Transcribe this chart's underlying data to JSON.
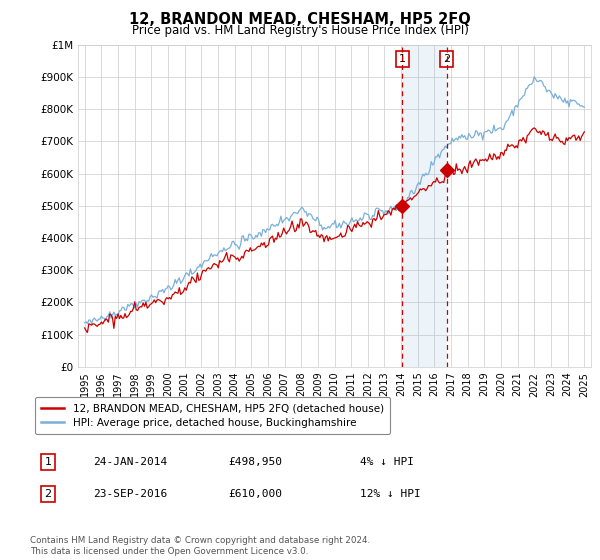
{
  "title": "12, BRANDON MEAD, CHESHAM, HP5 2FQ",
  "subtitle": "Price paid vs. HM Land Registry's House Price Index (HPI)",
  "ylim": [
    0,
    1000000
  ],
  "yticks": [
    0,
    100000,
    200000,
    300000,
    400000,
    500000,
    600000,
    700000,
    800000,
    900000,
    1000000
  ],
  "ytick_labels": [
    "£0",
    "£100K",
    "£200K",
    "£300K",
    "£400K",
    "£500K",
    "£600K",
    "£700K",
    "£800K",
    "£900K",
    "£1M"
  ],
  "hpi_color": "#7ab0d8",
  "price_color": "#cc0000",
  "sale1_price": 498950,
  "sale1_x": 2014.07,
  "sale1_date": "24-JAN-2014",
  "sale1_note": "4% ↓ HPI",
  "sale2_price": 610000,
  "sale2_x": 2016.73,
  "sale2_date": "23-SEP-2016",
  "sale2_note": "12% ↓ HPI",
  "legend_label1": "12, BRANDON MEAD, CHESHAM, HP5 2FQ (detached house)",
  "legend_label2": "HPI: Average price, detached house, Buckinghamshire",
  "footer": "Contains HM Land Registry data © Crown copyright and database right 2024.\nThis data is licensed under the Open Government Licence v3.0.",
  "background_color": "#ffffff",
  "grid_color": "#cccccc"
}
